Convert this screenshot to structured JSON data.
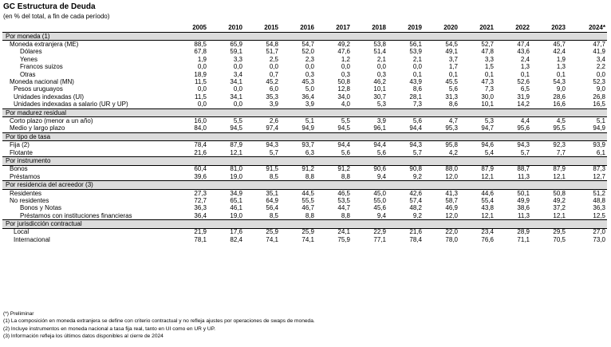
{
  "title": "GC Estructura de Deuda",
  "subtitle": "(en % del total, a fin de cada período)",
  "years": [
    "2005",
    "2010",
    "2015",
    "2016",
    "2017",
    "2018",
    "2019",
    "2020",
    "2021",
    "2022",
    "2023",
    "2024*"
  ],
  "rows": [
    {
      "type": "section",
      "label": "Por moneda (1)"
    },
    {
      "label": "Moneda extranjera (ME)",
      "level": 1,
      "values": [
        "88,5",
        "65,9",
        "54,8",
        "54,7",
        "49,2",
        "53,8",
        "56,1",
        "54,5",
        "52,7",
        "47,4",
        "45,7",
        "47,7"
      ]
    },
    {
      "label": "Dólares",
      "level": 3,
      "values": [
        "67,8",
        "59,1",
        "51,7",
        "52,0",
        "47,6",
        "51,4",
        "53,9",
        "49,1",
        "47,8",
        "43,6",
        "42,4",
        "41,9"
      ]
    },
    {
      "label": "Yenes",
      "level": 3,
      "values": [
        "1,9",
        "3,3",
        "2,5",
        "2,3",
        "1,2",
        "2,1",
        "2,1",
        "3,7",
        "3,3",
        "2,4",
        "1,9",
        "3,4"
      ]
    },
    {
      "label": "Francos suizos",
      "level": 3,
      "values": [
        "0,0",
        "0,0",
        "0,0",
        "0,0",
        "0,0",
        "0,0",
        "0,0",
        "1,7",
        "1,5",
        "1,3",
        "1,3",
        "2,2"
      ]
    },
    {
      "label": "Otras",
      "level": 3,
      "values": [
        "18,9",
        "3,4",
        "0,7",
        "0,3",
        "0,3",
        "0,3",
        "0,1",
        "0,1",
        "0,1",
        "0,1",
        "0,1",
        "0,0"
      ]
    },
    {
      "label": "Moneda nacional (MN)",
      "level": 1,
      "values": [
        "11,5",
        "34,1",
        "45,2",
        "45,3",
        "50,8",
        "46,2",
        "43,9",
        "45,5",
        "47,3",
        "52,6",
        "54,3",
        "52,3"
      ]
    },
    {
      "label": "Pesos uruguayos",
      "level": 2,
      "values": [
        "0,0",
        "0,0",
        "6,0",
        "5,0",
        "12,8",
        "10,1",
        "8,6",
        "5,6",
        "7,3",
        "6,5",
        "9,0",
        "9,0"
      ]
    },
    {
      "label": "Unidades indexadas (UI)",
      "level": 2,
      "values": [
        "11,5",
        "34,1",
        "35,3",
        "36,4",
        "34,0",
        "30,7",
        "28,1",
        "31,3",
        "30,0",
        "31,9",
        "28,6",
        "26,8"
      ]
    },
    {
      "label": "Unidades indexadas a salario (UR y UP)",
      "level": 2,
      "values": [
        "0,0",
        "0,0",
        "3,9",
        "3,9",
        "4,0",
        "5,3",
        "7,3",
        "8,6",
        "10,1",
        "14,2",
        "16,6",
        "16,5"
      ]
    },
    {
      "type": "section",
      "label": "Por madurez residual"
    },
    {
      "label": "Corto plazo (menor a un año)",
      "level": 1,
      "values": [
        "16,0",
        "5,5",
        "2,6",
        "5,1",
        "5,5",
        "3,9",
        "5,6",
        "4,7",
        "5,3",
        "4,4",
        "4,5",
        "5,1"
      ]
    },
    {
      "label": "Medio y largo plazo",
      "level": 1,
      "values": [
        "84,0",
        "94,5",
        "97,4",
        "94,9",
        "94,5",
        "96,1",
        "94,4",
        "95,3",
        "94,7",
        "95,6",
        "95,5",
        "94,9"
      ]
    },
    {
      "type": "section",
      "label": "Por tipo de tasa"
    },
    {
      "label": "Fija (2)",
      "level": 1,
      "values": [
        "78,4",
        "87,9",
        "94,3",
        "93,7",
        "94,4",
        "94,4",
        "94,3",
        "95,8",
        "94,6",
        "94,3",
        "92,3",
        "93,9"
      ]
    },
    {
      "label": "Flotante",
      "level": 1,
      "values": [
        "21,6",
        "12,1",
        "5,7",
        "6,3",
        "5,6",
        "5,6",
        "5,7",
        "4,2",
        "5,4",
        "5,7",
        "7,7",
        "6,1"
      ]
    },
    {
      "type": "section",
      "label": "Por instrumento"
    },
    {
      "label": "Bonos",
      "level": 1,
      "values": [
        "60,4",
        "81,0",
        "91,5",
        "91,2",
        "91,2",
        "90,6",
        "90,8",
        "88,0",
        "87,9",
        "88,7",
        "87,9",
        "87,3"
      ]
    },
    {
      "label": "Préstamos",
      "level": 1,
      "values": [
        "39,6",
        "19,0",
        "8,5",
        "8,8",
        "8,8",
        "9,4",
        "9,2",
        "12,0",
        "12,1",
        "11,3",
        "12,1",
        "12,7"
      ]
    },
    {
      "type": "section",
      "label": "Por residencia del acreedor (3)"
    },
    {
      "label": "Residentes",
      "level": 1,
      "values": [
        "27,3",
        "34,9",
        "35,1",
        "44,5",
        "46,5",
        "45,0",
        "42,6",
        "41,3",
        "44,6",
        "50,1",
        "50,8",
        "51,2"
      ]
    },
    {
      "label": "No residentes",
      "level": 1,
      "values": [
        "72,7",
        "65,1",
        "64,9",
        "55,5",
        "53,5",
        "55,0",
        "57,4",
        "58,7",
        "55,4",
        "49,9",
        "49,2",
        "48,8"
      ]
    },
    {
      "label": "Bonos y Notas",
      "level": 3,
      "values": [
        "36,3",
        "46,1",
        "56,4",
        "46,7",
        "44,7",
        "45,6",
        "48,2",
        "46,9",
        "43,8",
        "38,6",
        "37,2",
        "36,3"
      ]
    },
    {
      "label": "Préstamos con instituciones financieras",
      "level": 3,
      "values": [
        "36,4",
        "19,0",
        "8,5",
        "8,8",
        "8,8",
        "9,4",
        "9,2",
        "12,0",
        "12,1",
        "11,3",
        "12,1",
        "12,5"
      ]
    },
    {
      "type": "section",
      "label": "Por jurisdicción contractual"
    },
    {
      "label": "Local",
      "level": 2,
      "values": [
        "21,9",
        "17,6",
        "25,9",
        "25,9",
        "24,1",
        "22,9",
        "21,6",
        "22,0",
        "23,4",
        "28,9",
        "29,5",
        "27,0"
      ]
    },
    {
      "label": "Internacional",
      "level": 2,
      "values": [
        "78,1",
        "82,4",
        "74,1",
        "74,1",
        "75,9",
        "77,1",
        "78,4",
        "78,0",
        "76,6",
        "71,1",
        "70,5",
        "73,0"
      ]
    }
  ],
  "notes": [
    "(*) Preliminar",
    "(1) La composición en moneda extranjera se define con criterio contractual y no refleja ajustes por operaciones de swaps de moneda.",
    "(2) Incluye instrumentos en moneda nacional a tasa fija real, tanto en UI como en UR y UP.",
    "(3) Información refleja los últimos datos disponibles al cierre de 2024"
  ]
}
